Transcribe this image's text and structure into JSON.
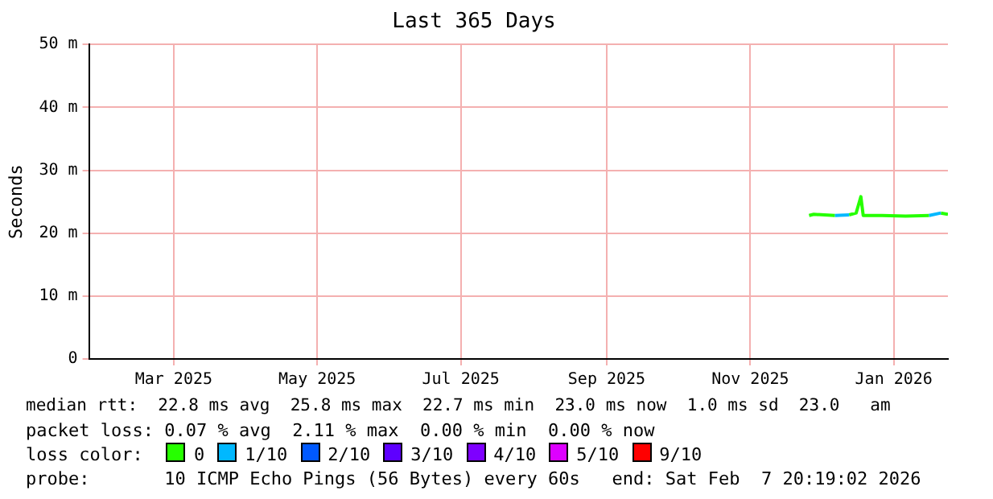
{
  "chart_data": {
    "type": "line",
    "title": "Last 365 Days",
    "ylabel": "Seconds",
    "xlim": [
      "2025-02-07",
      "2026-02-07"
    ],
    "xticks": [
      {
        "value": "2025-03-15",
        "label": "Mar 2025"
      },
      {
        "value": "2025-05-15",
        "label": "May 2025"
      },
      {
        "value": "2025-07-15",
        "label": "Jul 2025"
      },
      {
        "value": "2025-09-15",
        "label": "Sep 2025"
      },
      {
        "value": "2025-11-15",
        "label": "Nov 2025"
      },
      {
        "value": "2026-01-15",
        "label": "Jan 2026"
      }
    ],
    "ylim": [
      0,
      50
    ],
    "yticks": [
      0,
      {
        "value": 10,
        "label": "10 m"
      },
      {
        "value": 20,
        "label": "20 m"
      },
      {
        "value": 30,
        "label": "30 m"
      },
      {
        "value": 40,
        "label": "40 m"
      },
      {
        "value": 50,
        "label": "50 m"
      }
    ],
    "grid": true,
    "legend": "bottom left",
    "legend_title": "loss color:",
    "marker": "none",
    "line_style": "solid",
    "series": [
      {
        "name": "0",
        "color": "#26ff00",
        "x": [
          "2025-12-10",
          "2025-12-12",
          "2025-12-21",
          "2025-12-24",
          "2025-12-27",
          "2025-12-30",
          "2026-01-01",
          "2026-01-02",
          "2026-01-10",
          "2026-01-20",
          "2026-01-30",
          "2026-02-02",
          "2026-02-04",
          "2026-02-07"
        ],
        "values": [
          22.8,
          23.0,
          22.8,
          null,
          22.9,
          23.2,
          25.8,
          22.8,
          22.8,
          22.7,
          22.8,
          null,
          23.2,
          23.0
        ]
      },
      {
        "name": "1/10",
        "color": "#00b8ff",
        "x": [
          "2025-12-21",
          "2025-12-27",
          "2026-01-15",
          "2026-01-30",
          "2026-02-04"
        ],
        "values": [
          22.8,
          22.9,
          null,
          22.8,
          23.2
        ]
      },
      {
        "name": "2/10",
        "color": "#0059ff"
      },
      {
        "name": "3/10",
        "color": "#5e00ff"
      },
      {
        "name": "4/10",
        "color": "#7e00ff"
      },
      {
        "name": "5/10",
        "color": "#dd00ff"
      },
      {
        "name": "9/10",
        "color": "#ff0000"
      }
    ],
    "annotations": [
      "median rtt:  22.8 ms avg  25.8 ms max  22.7 ms min  23.0 ms now  1.0 ms sd  23.0   am",
      "packet loss: 0.07 % avg  2.11 % max  0.00 % min  0.00 % now",
      "probe:       10 ICMP Echo Pings (56 Bytes) every 60s   end: Sat Feb  7 20:19:02 2026"
    ]
  }
}
